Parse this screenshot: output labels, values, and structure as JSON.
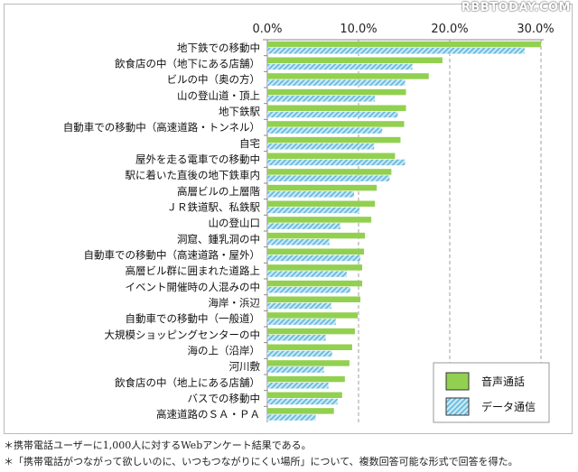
{
  "watermark": "RBBTODAY.COM",
  "chart_data": {
    "type": "bar",
    "orientation": "horizontal",
    "xlim": [
      0,
      30
    ],
    "ticks": [
      "0.0%",
      "10.0%",
      "20.0%",
      "30.0%"
    ],
    "grid": true,
    "legend_position": "bottom-right",
    "categories": [
      "地下鉄での移動中",
      "飲食店の中（地下にある店舗）",
      "ビルの中（奥の方）",
      "山の登山道・頂上",
      "地下鉄駅",
      "自動車での移動中（高速道路・トンネル）",
      "自宅",
      "屋外を走る電車での移動中",
      "駅に着いた直後の地下鉄車内",
      "高層ビルの上層階",
      "ＪＲ鉄道駅、私鉄駅",
      "山の登山口",
      "洞窟、鍾乳洞の中",
      "自動車での移動中（高速道路・屋外）",
      "高層ビル群に囲まれた道路上",
      "イベント開催時の人混みの中",
      "海岸・浜辺",
      "自動車での移動中（一般道）",
      "大規模ショッピングセンターの中",
      "海の上（沿岸）",
      "河川敷",
      "飲食店の中（地上にある店舗）",
      "バスでの移動中",
      "高速道路のＳＡ・ＰＡ"
    ],
    "series": [
      {
        "name": "音声通話",
        "color": "#92d050",
        "pattern": "solid",
        "values": [
          30.0,
          19.2,
          17.7,
          15.2,
          15.2,
          15.0,
          14.6,
          14.0,
          13.6,
          12.0,
          11.8,
          11.4,
          10.7,
          10.6,
          10.4,
          10.4,
          10.2,
          9.9,
          9.6,
          9.3,
          9.0,
          8.5,
          8.2,
          7.3
        ]
      },
      {
        "name": "データ通信",
        "color": "#9dd3ea",
        "pattern": "hatched",
        "values": [
          28.2,
          15.9,
          15.1,
          11.8,
          14.3,
          12.6,
          11.7,
          15.1,
          13.4,
          9.5,
          10.1,
          8.0,
          6.8,
          10.2,
          8.7,
          9.1,
          7.0,
          7.5,
          6.4,
          7.1,
          6.2,
          6.7,
          7.7,
          5.3
        ]
      }
    ]
  },
  "notes": [
    "＊携帯電話ユーザーに1,000人に対するWebアンケート結果である。",
    "＊「携帯電話がつながって欲しいのに、いつもつながりにくい場所」について、複数回答可能な形式で回答を得た。"
  ]
}
